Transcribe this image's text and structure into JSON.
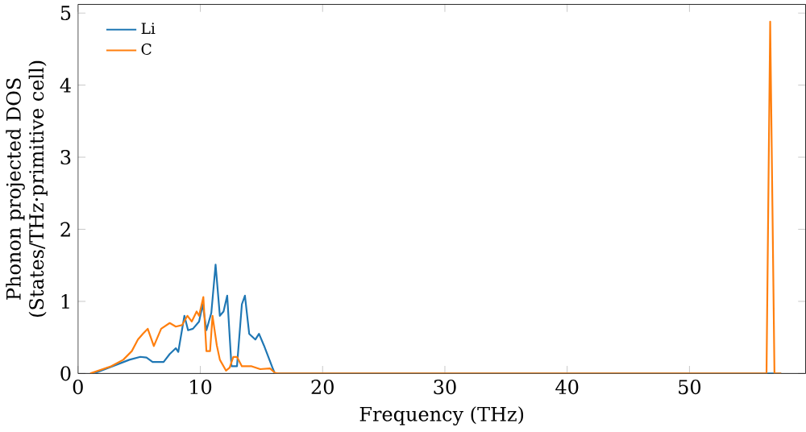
{
  "chart_data": {
    "type": "line",
    "xlabel": "Frequency (THz)",
    "ylabel": "Phonon projected DOS\n(States/THz·primitive cell)",
    "xlim": [
      0,
      59.5
    ],
    "ylim": [
      0,
      5.12
    ],
    "xticks": [
      0,
      10,
      20,
      30,
      40,
      50
    ],
    "yticks": [
      0,
      1,
      2,
      3,
      4,
      5
    ],
    "legend": "top left",
    "grid": false,
    "marker": "none",
    "line_style": "solid",
    "series": [
      {
        "name": "Li",
        "color": "#1f77b4",
        "x": [
          1.3,
          4.2,
          5.1,
          5.6,
          6.1,
          7.0,
          7.5,
          8.0,
          8.2,
          8.7,
          9.0,
          9.4,
          9.9,
          10.2,
          10.5,
          10.9,
          11.25,
          11.6,
          11.9,
          12.2,
          12.55,
          13.0,
          13.4,
          13.65,
          14.0,
          14.5,
          14.8,
          15.2,
          15.9,
          16.1,
          20,
          57.5
        ],
        "values": [
          0,
          0.19,
          0.23,
          0.22,
          0.16,
          0.16,
          0.27,
          0.35,
          0.3,
          0.8,
          0.6,
          0.62,
          0.72,
          0.96,
          0.6,
          0.84,
          1.51,
          0.8,
          0.86,
          1.08,
          0.1,
          0.1,
          0.96,
          1.08,
          0.55,
          0.47,
          0.55,
          0.39,
          0.08,
          0,
          0,
          0
        ]
      },
      {
        "name": "C",
        "color": "#ff7f0e",
        "x": [
          1.0,
          2.7,
          3.7,
          4.4,
          4.9,
          5.3,
          5.7,
          6.2,
          6.8,
          7.5,
          8.0,
          8.5,
          8.95,
          9.3,
          9.7,
          9.9,
          10.25,
          10.5,
          10.8,
          11.0,
          11.35,
          11.6,
          12.1,
          12.4,
          12.7,
          13.0,
          13.4,
          14.2,
          14.9,
          15.7,
          16.1,
          16.4,
          56.3,
          56.6,
          56.95,
          57.5
        ],
        "values": [
          0,
          0.1,
          0.19,
          0.31,
          0.47,
          0.55,
          0.62,
          0.38,
          0.62,
          0.7,
          0.65,
          0.67,
          0.8,
          0.72,
          0.86,
          0.8,
          1.06,
          0.31,
          0.31,
          0.8,
          0.39,
          0.19,
          0.04,
          0.08,
          0.23,
          0.23,
          0.1,
          0.1,
          0.06,
          0.07,
          0.01,
          0,
          0,
          4.88,
          0,
          0
        ]
      }
    ]
  }
}
